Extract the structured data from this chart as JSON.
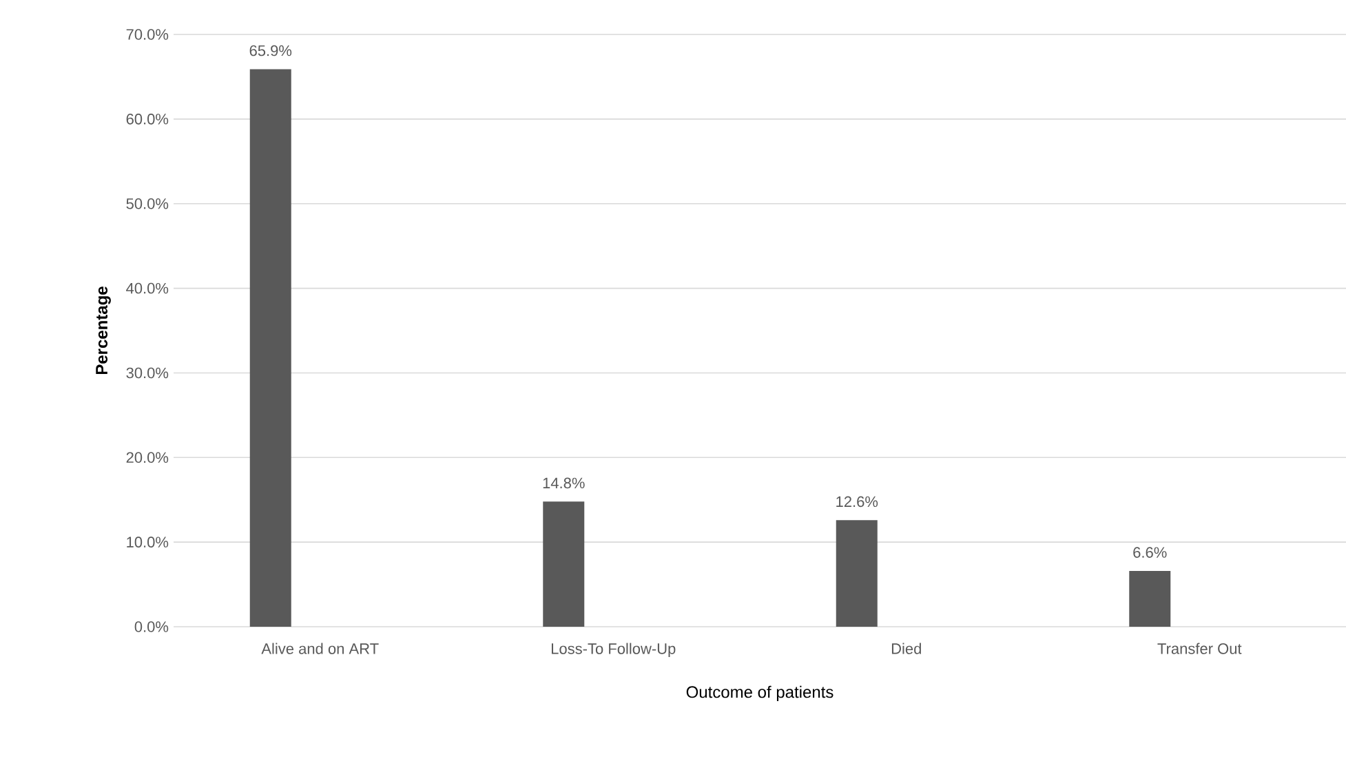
{
  "chart_data": {
    "type": "bar",
    "xlabel": "Outcome of patients",
    "ylabel": "Percentage",
    "categories": [
      "Alive and on ART",
      "Loss-To Follow-Up",
      "Died",
      "Transfer Out"
    ],
    "values": [
      65.9,
      14.8,
      12.6,
      6.6
    ],
    "value_labels": [
      "65.9%",
      "14.8%",
      "12.6%",
      "6.6%"
    ],
    "color": "#595959",
    "ylim": [
      0,
      70
    ],
    "yticks": [
      {
        "value": 0,
        "label": "0.0%"
      },
      {
        "value": 10,
        "label": "10.0%"
      },
      {
        "value": 20,
        "label": "20.0%"
      },
      {
        "value": 30,
        "label": "30.0%"
      },
      {
        "value": 40,
        "label": "40.0%"
      },
      {
        "value": 50,
        "label": "50.0%"
      },
      {
        "value": 60,
        "label": "60.0%"
      },
      {
        "value": 70,
        "label": "70.0%"
      }
    ],
    "grid": "y"
  }
}
